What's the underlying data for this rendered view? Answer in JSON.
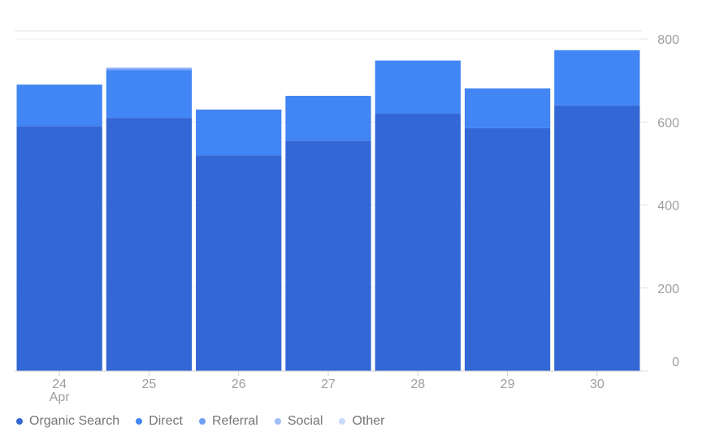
{
  "chart_data": {
    "type": "bar",
    "stacked": true,
    "categories": [
      "24",
      "25",
      "26",
      "27",
      "28",
      "29",
      "30"
    ],
    "x_sublabel": "Apr",
    "series": [
      {
        "name": "Organic Search",
        "color": "#3367d6",
        "values": [
          590,
          610,
          520,
          555,
          620,
          585,
          640
        ]
      },
      {
        "name": "Direct",
        "color": "#4285f4",
        "values": [
          100,
          115,
          110,
          108,
          128,
          96,
          133
        ]
      },
      {
        "name": "Referral",
        "color": "#6fa0f6",
        "values": [
          0,
          4,
          0,
          0,
          0,
          0,
          0
        ]
      },
      {
        "name": "Social",
        "color": "#9dbdf8",
        "values": [
          0,
          2,
          0,
          0,
          0,
          0,
          0
        ]
      },
      {
        "name": "Other",
        "color": "#c9dbfb",
        "values": [
          0,
          0,
          0,
          0,
          0,
          0,
          0
        ]
      }
    ],
    "ylim": [
      0,
      800
    ],
    "yticks": [
      0,
      200,
      400,
      600,
      800
    ],
    "y_axis_side": "right",
    "grid": true,
    "legend_position": "bottom-left",
    "title": "",
    "xlabel": "",
    "ylabel": ""
  }
}
